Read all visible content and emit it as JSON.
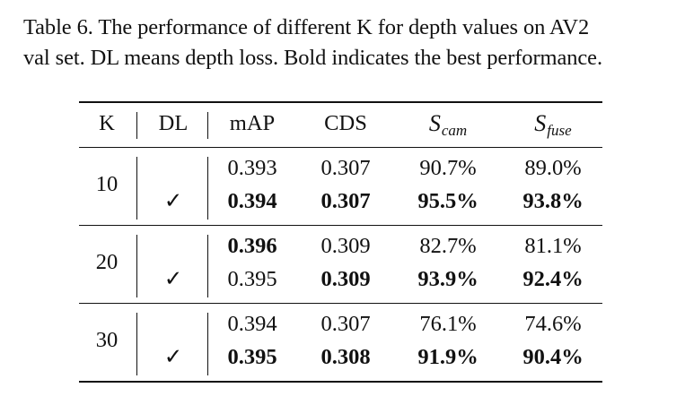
{
  "caption": {
    "line1": "Table 6. The performance of different K for depth values on AV2",
    "line2": "val set. DL means depth loss. Bold indicates the best performance."
  },
  "table": {
    "headers": {
      "k": "K",
      "dl": "DL",
      "map": "mAP",
      "cds": "CDS",
      "s_cam_base": "S",
      "s_cam_sub": "cam",
      "s_fuse_base": "S",
      "s_fuse_sub": "fuse"
    },
    "groups": [
      {
        "k": "10",
        "rows": [
          {
            "dl": "",
            "map": "0.393",
            "cds": "0.307",
            "s_cam": "90.7%",
            "s_fuse": "89.0%",
            "bold": [
              false,
              false,
              false,
              false
            ]
          },
          {
            "dl": "✓",
            "map": "0.394",
            "cds": "0.307",
            "s_cam": "95.5%",
            "s_fuse": "93.8%",
            "bold": [
              true,
              true,
              true,
              true
            ]
          }
        ]
      },
      {
        "k": "20",
        "rows": [
          {
            "dl": "",
            "map": "0.396",
            "cds": "0.309",
            "s_cam": "82.7%",
            "s_fuse": "81.1%",
            "bold": [
              true,
              false,
              false,
              false
            ]
          },
          {
            "dl": "✓",
            "map": "0.395",
            "cds": "0.309",
            "s_cam": "93.9%",
            "s_fuse": "92.4%",
            "bold": [
              false,
              true,
              true,
              true
            ]
          }
        ]
      },
      {
        "k": "30",
        "rows": [
          {
            "dl": "",
            "map": "0.394",
            "cds": "0.307",
            "s_cam": "76.1%",
            "s_fuse": "74.6%",
            "bold": [
              false,
              false,
              false,
              false
            ]
          },
          {
            "dl": "✓",
            "map": "0.395",
            "cds": "0.308",
            "s_cam": "91.9%",
            "s_fuse": "90.4%",
            "bold": [
              true,
              true,
              true,
              true
            ]
          }
        ]
      }
    ]
  }
}
